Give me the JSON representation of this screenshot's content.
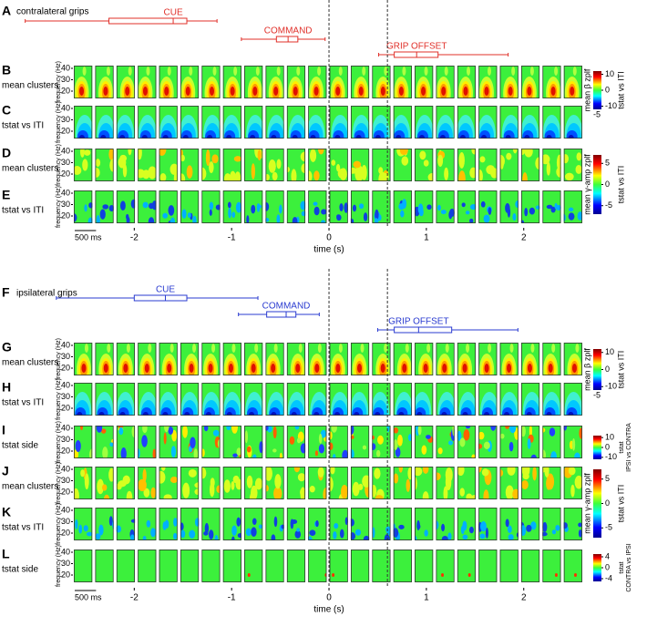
{
  "time_axis": {
    "label": "time (s)",
    "xlim": [
      -2.63,
      2.62
    ],
    "xticks": [
      -2,
      -1,
      0,
      1,
      2
    ],
    "scale_bar": "500 ms"
  },
  "event_lines": [
    0,
    0.6
  ],
  "frequency_axis": {
    "label": "frequency (Hz)",
    "ylim": [
      13.6,
      42.4
    ],
    "yticks": [
      40,
      30,
      20
    ]
  },
  "panels": [
    {
      "letter": "A",
      "title": "contralateral grips",
      "color": "#e0302a",
      "events": [
        {
          "label": "CUE",
          "whislo": -3.12,
          "q1": -2.26,
          "med": -1.6,
          "q3": -1.46,
          "whishi": -1.15
        },
        {
          "label": "COMMAND",
          "whislo": -0.9,
          "q1": -0.54,
          "med": -0.42,
          "q3": -0.32,
          "whishi": -0.04
        },
        {
          "label": "GRIP OFFSET",
          "whislo": 0.51,
          "q1": 0.67,
          "med": 0.9,
          "q3": 1.12,
          "whishi": 1.84
        }
      ],
      "rows": [
        {
          "letter": "B",
          "label": "mean clusters",
          "colorbar": {
            "left_label": "mean β zplf",
            "right_labels": [
              "tstat vs ITI"
            ],
            "clim": [
              -12,
              12
            ],
            "ticks": [
              10,
              0,
              -10
            ],
            "bottom_tick": -5
          }
        },
        {
          "letter": "C",
          "label": "tstat vs ITI"
        },
        {
          "letter": "D",
          "label": "mean clusters",
          "colorbar": {
            "left_label": "mean γ-amp zplf",
            "right_labels": [
              "tstat vs ITI"
            ],
            "clim": [
              -7,
              7
            ],
            "ticks": [
              5,
              0,
              -5
            ]
          }
        },
        {
          "letter": "E",
          "label": "tstat vs ITI"
        }
      ]
    },
    {
      "letter": "F",
      "title": "ipsilateral grips",
      "color": "#2a3bd0",
      "events": [
        {
          "label": "CUE",
          "whislo": -2.8,
          "q1": -2.0,
          "med": -1.68,
          "q3": -1.46,
          "whishi": -0.73
        },
        {
          "label": "COMMAND",
          "whislo": -0.93,
          "q1": -0.64,
          "med": -0.44,
          "q3": -0.34,
          "whishi": -0.1
        },
        {
          "label": "GRIP OFFSET",
          "whislo": 0.5,
          "q1": 0.67,
          "med": 0.92,
          "q3": 1.26,
          "whishi": 1.94
        }
      ],
      "rows": [
        {
          "letter": "G",
          "label": "mean clusters",
          "colorbar": {
            "left_label": "mean β zplf",
            "right_labels": [
              "tstat vs ITI"
            ],
            "clim": [
              -12,
              12
            ],
            "ticks": [
              10,
              0,
              -10
            ],
            "bottom_tick": -5
          }
        },
        {
          "letter": "H",
          "label": "tstat vs ITI"
        },
        {
          "letter": "I",
          "label": "tstat side",
          "colorbar": {
            "right_labels": [
              "tstat",
              "IPSI vs CONTRA"
            ],
            "clim": [
              -12,
              12
            ],
            "ticks": [
              10,
              0,
              -10
            ]
          }
        },
        {
          "letter": "J",
          "label": "mean clusters",
          "colorbar": {
            "left_label": "mean γ-amp zplf",
            "right_labels": [
              "tstat vs ITI"
            ],
            "clim": [
              -7,
              7
            ],
            "ticks": [
              5,
              0,
              -5
            ]
          }
        },
        {
          "letter": "K",
          "label": "tstat vs ITI"
        },
        {
          "letter": "L",
          "label": "tstat side",
          "colorbar": {
            "right_labels": [
              "tstat",
              "CONTRA vs IPSI"
            ],
            "clim": [
              -5,
              5
            ],
            "ticks": [
              4,
              0,
              -4
            ]
          }
        }
      ]
    }
  ]
}
